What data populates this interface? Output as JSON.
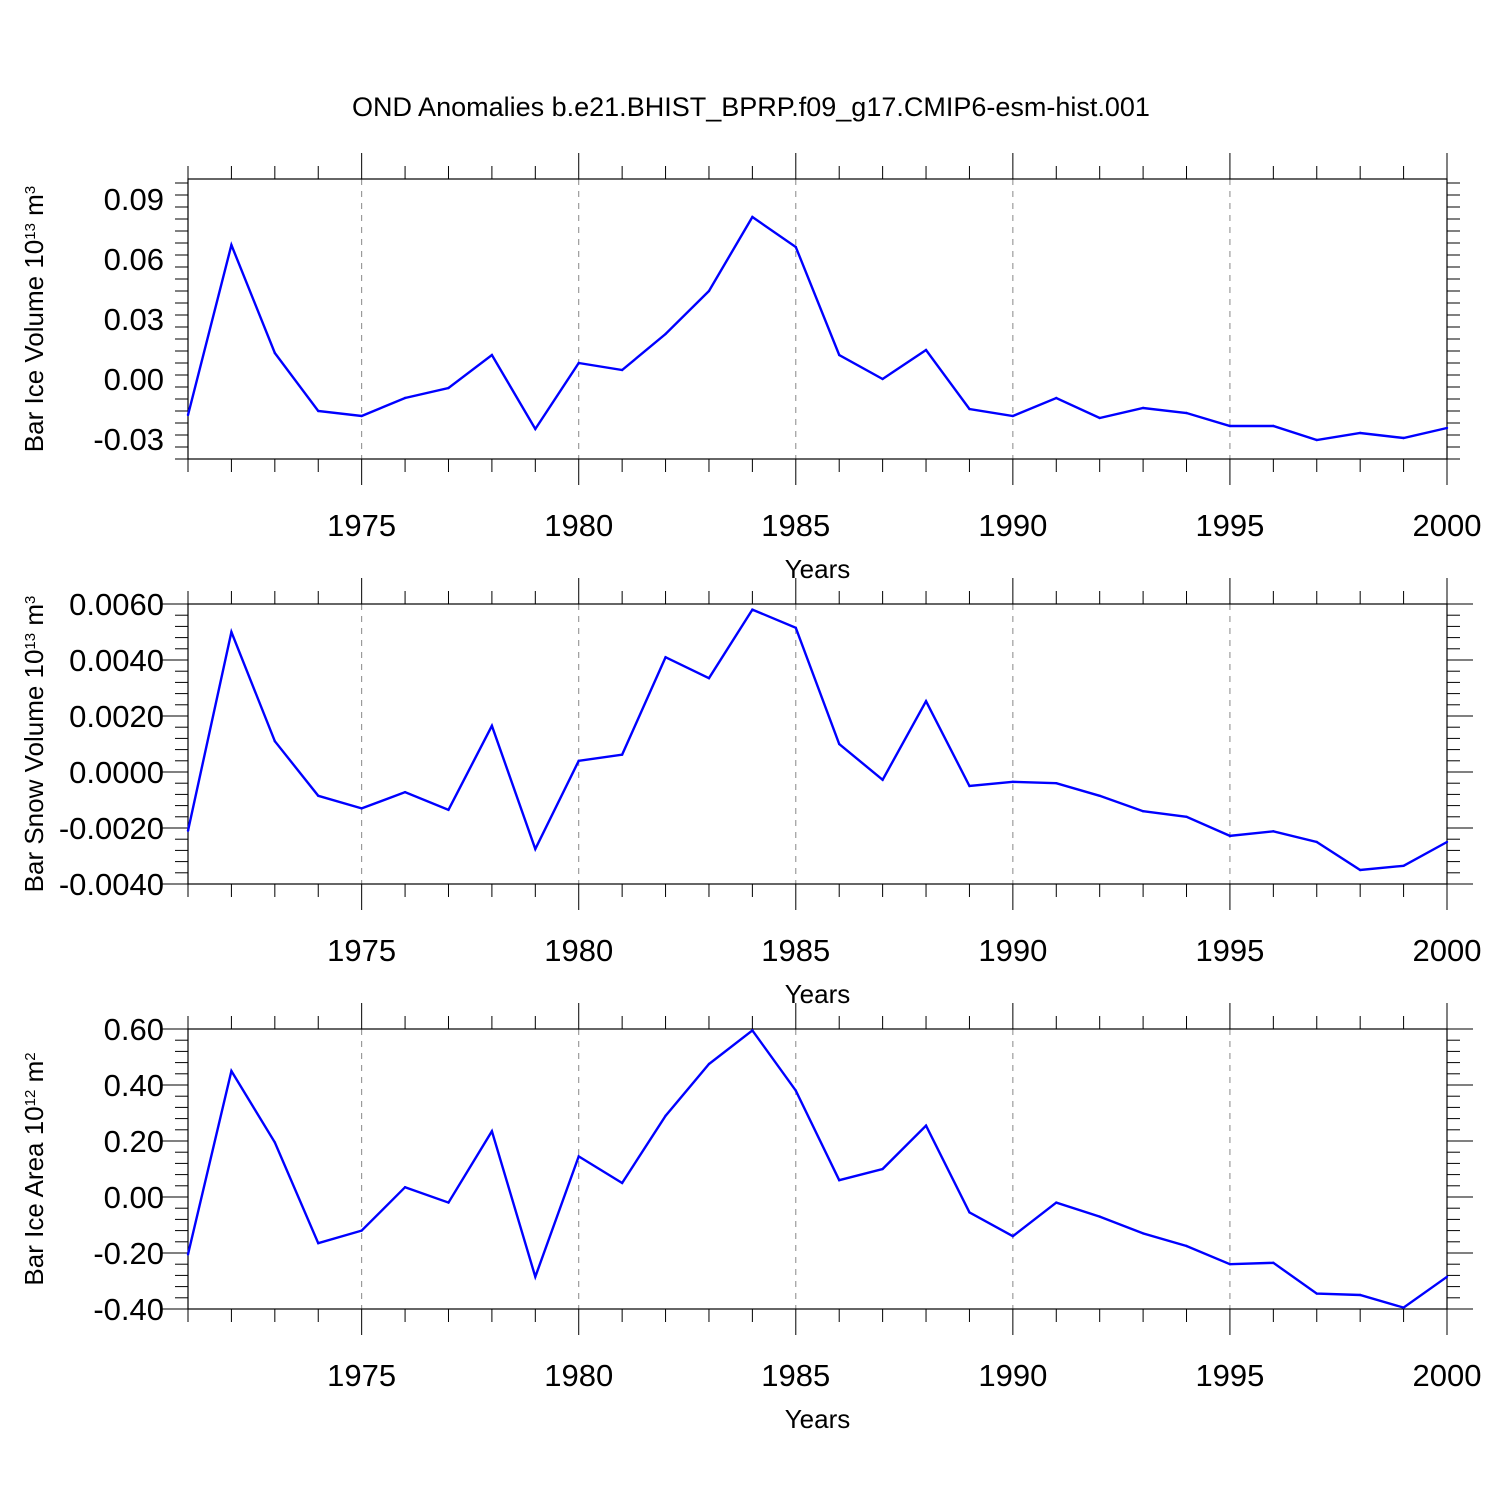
{
  "title": "OND Anomalies b.e21.BHIST_BPRP.f09_g17.CMIP6-esm-hist.001",
  "colors": {
    "line": "#0000ff",
    "axis": "#000000",
    "grid": "#888888"
  },
  "chart_data": [
    {
      "type": "line",
      "name": "volume",
      "ylabel_base": "Bar Ice Volume 10",
      "ylabel_exp": "13",
      "ylabel_unit": " m",
      "ylabel_unit_exp": "3",
      "xlabel": "Years",
      "xlim": [
        1971,
        2000
      ],
      "ylim": [
        -0.04,
        0.1
      ],
      "yticks": [
        -0.03,
        0.0,
        0.03,
        0.06,
        0.09
      ],
      "ytick_labels": [
        "-0.03",
        "0.00",
        "0.03",
        "0.06",
        "0.09"
      ],
      "xticks": [
        1975,
        1980,
        1985,
        1990,
        1995,
        2000
      ],
      "xtick_labels": [
        "1975",
        "1980",
        "1985",
        "1990",
        "1995",
        "2000"
      ],
      "x": [
        1971,
        1972,
        1973,
        1974,
        1975,
        1976,
        1977,
        1978,
        1979,
        1980,
        1981,
        1982,
        1983,
        1984,
        1985,
        1986,
        1987,
        1988,
        1989,
        1990,
        1991,
        1992,
        1993,
        1994,
        1995,
        1996,
        1997,
        1998,
        1999,
        2000
      ],
      "y": [
        -0.018,
        0.067,
        0.013,
        -0.016,
        -0.0185,
        -0.0095,
        -0.0045,
        0.012,
        -0.025,
        0.008,
        0.0045,
        0.0225,
        0.044,
        0.081,
        0.066,
        0.012,
        0.0,
        0.0145,
        -0.015,
        -0.0185,
        -0.0095,
        -0.0195,
        -0.0145,
        -0.017,
        -0.0235,
        -0.0235,
        -0.0305,
        -0.027,
        -0.0295,
        -0.0245
      ]
    },
    {
      "type": "line",
      "name": "snow",
      "ylabel_base": "Bar Snow Volume 10",
      "ylabel_exp": "13",
      "ylabel_unit": " m",
      "ylabel_unit_exp": "3",
      "xlabel": "Years",
      "xlim": [
        1971,
        2000
      ],
      "ylim": [
        -0.004,
        0.006
      ],
      "yticks": [
        -0.004,
        -0.002,
        0.0,
        0.002,
        0.004,
        0.006
      ],
      "ytick_labels": [
        "-0.0040",
        "-0.0020",
        "0.0000",
        "0.0020",
        "0.0040",
        "0.0060"
      ],
      "xticks": [
        1975,
        1980,
        1985,
        1990,
        1995,
        2000
      ],
      "xtick_labels": [
        "1975",
        "1980",
        "1985",
        "1990",
        "1995",
        "2000"
      ],
      "x": [
        1971,
        1972,
        1973,
        1974,
        1975,
        1976,
        1977,
        1978,
        1979,
        1980,
        1981,
        1982,
        1983,
        1984,
        1985,
        1986,
        1987,
        1988,
        1989,
        1990,
        1991,
        1992,
        1993,
        1994,
        1995,
        1996,
        1997,
        1998,
        1999,
        2000
      ],
      "y": [
        -0.0021,
        0.005,
        0.0011,
        -0.00085,
        -0.0013,
        -0.00072,
        -0.00135,
        0.00165,
        -0.00275,
        0.0004,
        0.00062,
        0.0041,
        0.00335,
        0.0058,
        0.00515,
        0.001,
        -0.00028,
        0.00253,
        -0.0005,
        -0.00035,
        -0.0004,
        -0.00085,
        -0.0014,
        -0.0016,
        -0.00228,
        -0.00212,
        -0.0025,
        -0.0035,
        -0.00335,
        -0.0025
      ]
    },
    {
      "type": "line",
      "name": "area",
      "ylabel_base": "Bar Ice Area 10",
      "ylabel_exp": "12",
      "ylabel_unit": " m",
      "ylabel_unit_exp": "2",
      "xlabel": "Years",
      "xlim": [
        1971,
        2000
      ],
      "ylim": [
        -0.4,
        0.6
      ],
      "yticks": [
        -0.4,
        -0.2,
        0.0,
        0.2,
        0.4,
        0.6
      ],
      "ytick_labels": [
        "-0.40",
        "-0.20",
        "0.00",
        "0.20",
        "0.40",
        "0.60"
      ],
      "xticks": [
        1975,
        1980,
        1985,
        1990,
        1995,
        2000
      ],
      "xtick_labels": [
        "1975",
        "1980",
        "1985",
        "1990",
        "1995",
        "2000"
      ],
      "x": [
        1971,
        1972,
        1973,
        1974,
        1975,
        1976,
        1977,
        1978,
        1979,
        1980,
        1981,
        1982,
        1983,
        1984,
        1985,
        1986,
        1987,
        1988,
        1989,
        1990,
        1991,
        1992,
        1993,
        1994,
        1995,
        1996,
        1997,
        1998,
        1999,
        2000
      ],
      "y": [
        -0.205,
        0.45,
        0.195,
        -0.165,
        -0.12,
        0.035,
        -0.02,
        0.235,
        -0.285,
        0.145,
        0.05,
        0.29,
        0.475,
        0.595,
        0.38,
        0.06,
        0.1,
        0.255,
        -0.055,
        -0.14,
        -0.02,
        -0.07,
        -0.13,
        -0.175,
        -0.24,
        -0.235,
        -0.345,
        -0.35,
        -0.395,
        -0.285
      ]
    }
  ]
}
